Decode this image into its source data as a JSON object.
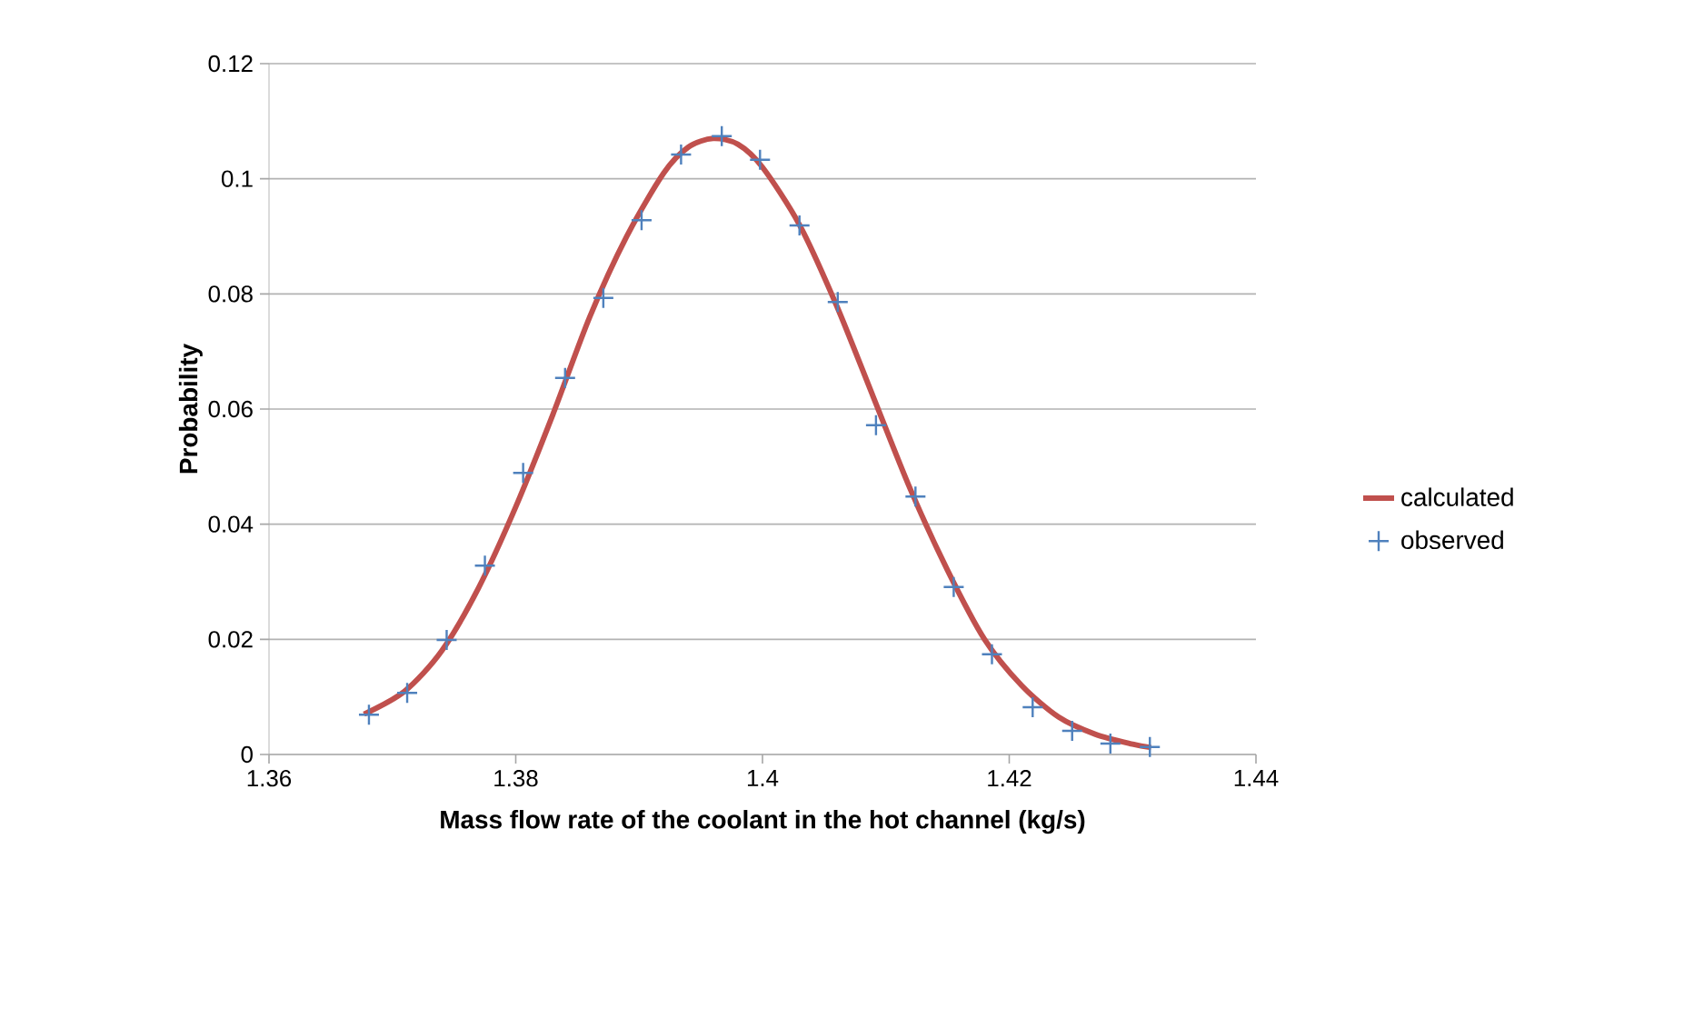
{
  "chart_data": {
    "type": "scatter",
    "xlabel": "Mass flow rate of the coolant in the hot channel (kg/s)",
    "ylabel": "Probability",
    "xlim": [
      1.36,
      1.44
    ],
    "xticks": [
      1.36,
      1.38,
      1.4,
      1.42,
      1.44
    ],
    "ylim": [
      0,
      0.12
    ],
    "yticks": [
      0,
      0.02,
      0.04,
      0.06,
      0.08,
      0.1,
      0.12
    ],
    "grid": "y",
    "legend": "right",
    "series": [
      {
        "name": "calculated",
        "type": "line",
        "marker": "none",
        "line_style": "solid",
        "color": "#c0504d",
        "x": [
          1.3677,
          1.371,
          1.374,
          1.377,
          1.38,
          1.383,
          1.386,
          1.389,
          1.392,
          1.394,
          1.396,
          1.398,
          1.4,
          1.403,
          1.406,
          1.409,
          1.412,
          1.415,
          1.418,
          1.421,
          1.424,
          1.427,
          1.43,
          1.4315
        ],
        "values": [
          0.007,
          0.011,
          0.018,
          0.029,
          0.043,
          0.059,
          0.076,
          0.09,
          0.101,
          0.1055,
          0.107,
          0.106,
          0.102,
          0.092,
          0.078,
          0.062,
          0.046,
          0.032,
          0.02,
          0.012,
          0.0065,
          0.0035,
          0.0018,
          0.0012
        ]
      },
      {
        "name": "observed",
        "marker": "cross",
        "color": "#4f81bd",
        "x": [
          1.3681,
          1.3712,
          1.3744,
          1.3775,
          1.3806,
          1.384,
          1.3871,
          1.3902,
          1.3934,
          1.3967,
          1.3998,
          1.403,
          1.4061,
          1.4092,
          1.4124,
          1.4155,
          1.4186,
          1.4219,
          1.4251,
          1.4282,
          1.4314
        ],
        "values": [
          0.0069,
          0.0107,
          0.0199,
          0.0328,
          0.0489,
          0.0654,
          0.0793,
          0.0928,
          0.1042,
          0.1074,
          0.1033,
          0.0919,
          0.0786,
          0.0572,
          0.0448,
          0.0291,
          0.0174,
          0.0082,
          0.0041,
          0.0019,
          0.0013
        ]
      }
    ]
  }
}
